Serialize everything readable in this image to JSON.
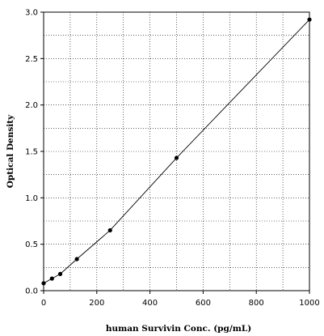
{
  "chart_data": {
    "type": "scatter",
    "xlabel": "human Survivin Conc. (pg/mL)",
    "ylabel": "Optical Density",
    "xlim": [
      0,
      1000
    ],
    "ylim": [
      0,
      3.0
    ],
    "x_ticks": [
      "0",
      "200",
      "400",
      "600",
      "800",
      "1000"
    ],
    "y_ticks": [
      "0.0",
      "0.5",
      "1.0",
      "1.5",
      "2.0",
      "2.5",
      "3.0"
    ],
    "grid": "dotted",
    "series": [
      {
        "points": [
          {
            "x": 0,
            "y": 0.08
          },
          {
            "x": 31.25,
            "y": 0.13
          },
          {
            "x": 62.5,
            "y": 0.18
          },
          {
            "x": 125,
            "y": 0.34
          },
          {
            "x": 250,
            "y": 0.65
          },
          {
            "x": 500,
            "y": 1.43
          },
          {
            "x": 1000,
            "y": 2.92
          }
        ],
        "fit_line": true
      }
    ]
  }
}
